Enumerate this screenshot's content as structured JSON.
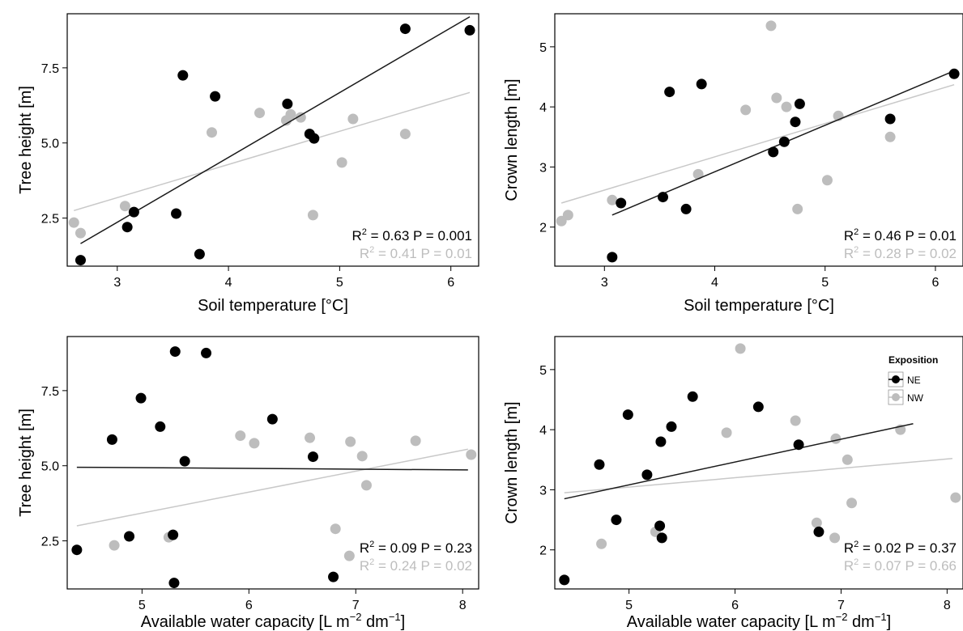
{
  "colors": {
    "NE": "#000000",
    "NW": "#bdbdbd",
    "NE_line": "#1a1a1a",
    "NW_line": "#c8c8c8"
  },
  "legend": {
    "title": "Exposition",
    "items": [
      "NE",
      "NW"
    ]
  },
  "chart_data": [
    {
      "type": "scatter",
      "xlabel": "Soil temperature [°C]",
      "ylabel": "Tree height [m]",
      "xlim": [
        2.55,
        6.25
      ],
      "ylim": [
        0.9,
        9.3
      ],
      "xticks": [
        3,
        4,
        5,
        6
      ],
      "yticks": [
        2.5,
        5.0,
        7.5
      ],
      "ytick_labels": [
        "2.5",
        "5.0",
        "7.5"
      ],
      "series": [
        {
          "name": "NE",
          "points": [
            [
              2.67,
              1.1
            ],
            [
              3.09,
              2.2
            ],
            [
              3.15,
              2.7
            ],
            [
              3.53,
              2.65
            ],
            [
              3.59,
              7.25
            ],
            [
              3.74,
              1.3
            ],
            [
              3.88,
              6.55
            ],
            [
              4.53,
              6.3
            ],
            [
              4.73,
              5.3
            ],
            [
              4.77,
              5.15
            ],
            [
              5.59,
              8.8
            ],
            [
              6.17,
              8.75
            ]
          ],
          "fit": [
            [
              2.67,
              1.65
            ],
            [
              6.17,
              9.2
            ]
          ]
        },
        {
          "name": "NW",
          "points": [
            [
              2.61,
              2.35
            ],
            [
              2.67,
              2.0
            ],
            [
              3.07,
              2.9
            ],
            [
              3.85,
              5.35
            ],
            [
              4.28,
              6.0
            ],
            [
              4.52,
              5.75
            ],
            [
              4.56,
              5.95
            ],
            [
              4.65,
              5.85
            ],
            [
              4.76,
              2.6
            ],
            [
              5.02,
              4.35
            ],
            [
              5.12,
              5.8
            ],
            [
              5.59,
              5.3
            ]
          ],
          "fit": [
            [
              2.61,
              2.75
            ],
            [
              6.17,
              6.68
            ]
          ]
        }
      ],
      "stats": [
        {
          "r2": "0.63",
          "p": "0.001"
        },
        {
          "r2": "0.41",
          "p": "0.01"
        }
      ]
    },
    {
      "type": "scatter",
      "xlabel": "Soil temperature [°C]",
      "ylabel": "Crown length [m]",
      "xlim": [
        2.55,
        6.25
      ],
      "ylim": [
        1.35,
        5.55
      ],
      "xticks": [
        3,
        4,
        5,
        6
      ],
      "yticks": [
        2,
        3,
        4,
        5
      ],
      "ytick_labels": [
        "2",
        "3",
        "4",
        "5"
      ],
      "series": [
        {
          "name": "NE",
          "points": [
            [
              3.07,
              1.5
            ],
            [
              3.15,
              2.4
            ],
            [
              3.53,
              2.5
            ],
            [
              3.59,
              4.25
            ],
            [
              3.74,
              2.3
            ],
            [
              3.88,
              4.38
            ],
            [
              4.53,
              3.25
            ],
            [
              4.63,
              3.42
            ],
            [
              4.73,
              3.75
            ],
            [
              4.77,
              4.05
            ],
            [
              5.59,
              3.8
            ],
            [
              6.17,
              4.55
            ]
          ],
          "fit": [
            [
              3.07,
              2.2
            ],
            [
              6.17,
              4.6
            ]
          ]
        },
        {
          "name": "NW",
          "points": [
            [
              2.61,
              2.1
            ],
            [
              2.67,
              2.2
            ],
            [
              3.07,
              2.45
            ],
            [
              3.85,
              2.88
            ],
            [
              4.28,
              3.95
            ],
            [
              4.51,
              5.35
            ],
            [
              4.56,
              4.15
            ],
            [
              4.65,
              4.0
            ],
            [
              4.75,
              2.3
            ],
            [
              5.02,
              2.78
            ],
            [
              5.12,
              3.85
            ],
            [
              5.59,
              3.5
            ]
          ],
          "fit": [
            [
              2.61,
              2.4
            ],
            [
              6.17,
              4.37
            ]
          ]
        }
      ],
      "stats": [
        {
          "r2": "0.46",
          "p": "0.01"
        },
        {
          "r2": "0.28",
          "p": "0.02"
        }
      ]
    },
    {
      "type": "scatter",
      "xlabel_main": "Available water capacity [L m",
      "xlabel_sup1": "−2",
      "xlabel_mid": " dm",
      "xlabel_sup2": "−1",
      "xlabel_end": "]",
      "ylabel": "Tree height [m]",
      "xlim": [
        4.3,
        8.15
      ],
      "ylim": [
        0.9,
        9.3
      ],
      "xticks": [
        5,
        6,
        7,
        8
      ],
      "yticks": [
        2.5,
        5.0,
        7.5
      ],
      "ytick_labels": [
        "2.5",
        "5.0",
        "7.5"
      ],
      "series": [
        {
          "name": "NE",
          "points": [
            [
              4.39,
              2.2
            ],
            [
              4.72,
              5.87
            ],
            [
              4.88,
              2.65
            ],
            [
              4.99,
              7.25
            ],
            [
              5.17,
              6.3
            ],
            [
              5.29,
              2.7
            ],
            [
              5.3,
              1.1
            ],
            [
              5.31,
              8.8
            ],
            [
              5.4,
              5.15
            ],
            [
              5.6,
              8.75
            ],
            [
              6.22,
              6.55
            ],
            [
              6.6,
              5.3
            ],
            [
              6.79,
              1.3
            ]
          ],
          "fit": [
            [
              4.39,
              4.95
            ],
            [
              8.05,
              4.86
            ]
          ]
        },
        {
          "name": "NW",
          "points": [
            [
              4.74,
              2.35
            ],
            [
              5.25,
              2.62
            ],
            [
              5.92,
              6.0
            ],
            [
              6.05,
              5.75
            ],
            [
              6.57,
              5.93
            ],
            [
              6.81,
              2.9
            ],
            [
              6.94,
              2.0
            ],
            [
              6.95,
              5.8
            ],
            [
              7.06,
              5.32
            ],
            [
              7.1,
              4.35
            ],
            [
              7.56,
              5.83
            ],
            [
              8.08,
              5.37
            ]
          ],
          "fit": [
            [
              4.39,
              3.0
            ],
            [
              8.05,
              5.55
            ]
          ]
        }
      ],
      "stats": [
        {
          "r2": "0.09",
          "p": "0.23"
        },
        {
          "r2": "0.24",
          "p": "0.02"
        }
      ]
    },
    {
      "type": "scatter",
      "xlabel_main": "Available water capacity [L m",
      "xlabel_sup1": "−2",
      "xlabel_mid": " dm",
      "xlabel_sup2": "−1",
      "xlabel_end": "]",
      "ylabel": "Crown length [m]",
      "xlim": [
        4.3,
        8.15
      ],
      "ylim": [
        1.35,
        5.55
      ],
      "xticks": [
        5,
        6,
        7,
        8
      ],
      "yticks": [
        2,
        3,
        4,
        5
      ],
      "ytick_labels": [
        "2",
        "3",
        "4",
        "5"
      ],
      "series": [
        {
          "name": "NE",
          "points": [
            [
              4.39,
              1.5
            ],
            [
              4.72,
              3.42
            ],
            [
              4.88,
              2.5
            ],
            [
              4.99,
              4.25
            ],
            [
              5.17,
              3.25
            ],
            [
              5.29,
              2.4
            ],
            [
              5.3,
              3.8
            ],
            [
              5.31,
              2.2
            ],
            [
              5.4,
              4.05
            ],
            [
              5.6,
              4.55
            ],
            [
              6.22,
              4.38
            ],
            [
              6.6,
              3.75
            ],
            [
              6.79,
              2.3
            ]
          ],
          "fit": [
            [
              4.39,
              2.85
            ],
            [
              7.68,
              4.1
            ]
          ]
        },
        {
          "name": "NW",
          "points": [
            [
              4.74,
              2.1
            ],
            [
              5.25,
              2.3
            ],
            [
              5.92,
              3.95
            ],
            [
              6.05,
              5.35
            ],
            [
              6.57,
              4.15
            ],
            [
              6.77,
              2.45
            ],
            [
              6.94,
              2.2
            ],
            [
              6.95,
              3.85
            ],
            [
              7.06,
              3.5
            ],
            [
              7.1,
              2.78
            ],
            [
              7.56,
              4.0
            ],
            [
              8.08,
              2.87
            ]
          ],
          "fit": [
            [
              4.39,
              2.95
            ],
            [
              8.05,
              3.52
            ]
          ]
        }
      ],
      "stats": [
        {
          "r2": "0.02",
          "p": "0.37"
        },
        {
          "r2": "0.07",
          "p": "0.66"
        }
      ]
    }
  ]
}
